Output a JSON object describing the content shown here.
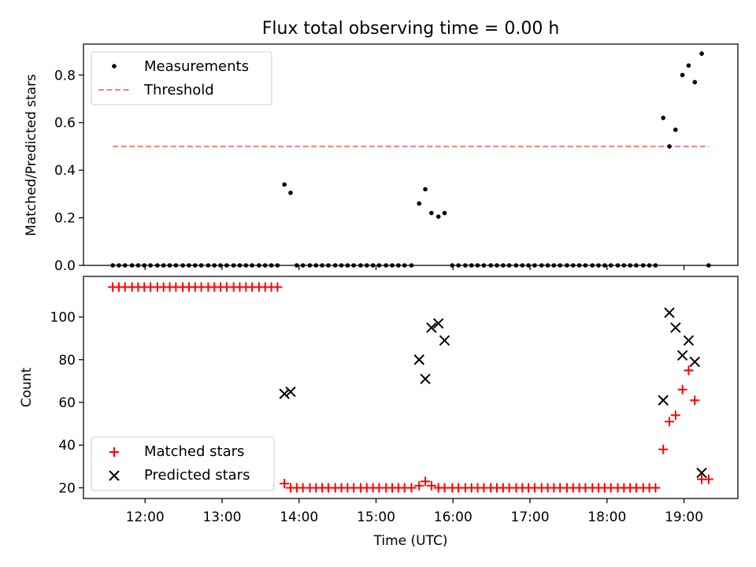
{
  "figure": {
    "title": "Flux total observing time = 0.00 h",
    "xlabel": "Time (UTC)",
    "x_ticks": [
      "12:00",
      "13:00",
      "14:00",
      "15:00",
      "16:00",
      "17:00",
      "18:00",
      "19:00"
    ]
  },
  "colors": {
    "measurement": "#000000",
    "threshold": "#ff7f7f",
    "matched": "#ff0000",
    "predicted": "#000000"
  },
  "chart_data": [
    {
      "type": "scatter",
      "name": "ratio",
      "ylabel": "Matched/Predicted stars",
      "xlim": [
        11.2,
        19.7
      ],
      "ylim": [
        0,
        0.93
      ],
      "y_ticks": [
        "0.0",
        "0.2",
        "0.4",
        "0.6",
        "0.8"
      ],
      "y_tick_values": [
        0,
        0.2,
        0.4,
        0.6,
        0.8
      ],
      "legend": {
        "location": "upper left",
        "entries": [
          "Measurements",
          "Threshold"
        ]
      },
      "threshold": {
        "name": "Threshold",
        "y": 0.5,
        "x_range": [
          11.58,
          19.32
        ]
      },
      "series": [
        {
          "name": "Measurements",
          "points": [
            [
              11.58,
              0
            ],
            [
              11.66,
              0
            ],
            [
              11.74,
              0
            ],
            [
              11.83,
              0
            ],
            [
              11.91,
              0
            ],
            [
              11.99,
              0
            ],
            [
              12.07,
              0
            ],
            [
              12.16,
              0
            ],
            [
              12.24,
              0
            ],
            [
              12.32,
              0
            ],
            [
              12.4,
              0
            ],
            [
              12.49,
              0
            ],
            [
              12.57,
              0
            ],
            [
              12.65,
              0
            ],
            [
              12.73,
              0
            ],
            [
              12.82,
              0
            ],
            [
              12.9,
              0
            ],
            [
              12.98,
              0
            ],
            [
              13.06,
              0
            ],
            [
              13.15,
              0
            ],
            [
              13.23,
              0
            ],
            [
              13.31,
              0
            ],
            [
              13.39,
              0
            ],
            [
              13.48,
              0
            ],
            [
              13.56,
              0
            ],
            [
              13.64,
              0
            ],
            [
              13.72,
              0
            ],
            [
              13.81,
              0.34
            ],
            [
              13.89,
              0.305
            ],
            [
              13.97,
              0
            ],
            [
              14.05,
              0
            ],
            [
              14.14,
              0
            ],
            [
              14.22,
              0
            ],
            [
              14.3,
              0
            ],
            [
              14.38,
              0
            ],
            [
              14.47,
              0
            ],
            [
              14.55,
              0
            ],
            [
              14.63,
              0
            ],
            [
              14.71,
              0
            ],
            [
              14.8,
              0
            ],
            [
              14.88,
              0
            ],
            [
              14.96,
              0
            ],
            [
              15.04,
              0
            ],
            [
              15.13,
              0
            ],
            [
              15.21,
              0
            ],
            [
              15.29,
              0
            ],
            [
              15.37,
              0
            ],
            [
              15.46,
              0
            ],
            [
              15.56,
              0.26
            ],
            [
              15.64,
              0.32
            ],
            [
              15.72,
              0.22
            ],
            [
              15.81,
              0.205
            ],
            [
              15.89,
              0.22
            ],
            [
              15.99,
              0
            ],
            [
              16.07,
              0
            ],
            [
              16.16,
              0
            ],
            [
              16.24,
              0
            ],
            [
              16.32,
              0
            ],
            [
              16.4,
              0
            ],
            [
              16.49,
              0
            ],
            [
              16.57,
              0
            ],
            [
              16.65,
              0
            ],
            [
              16.73,
              0
            ],
            [
              16.82,
              0
            ],
            [
              16.9,
              0
            ],
            [
              16.98,
              0
            ],
            [
              17.06,
              0
            ],
            [
              17.15,
              0
            ],
            [
              17.23,
              0
            ],
            [
              17.31,
              0
            ],
            [
              17.39,
              0
            ],
            [
              17.48,
              0
            ],
            [
              17.56,
              0
            ],
            [
              17.64,
              0
            ],
            [
              17.72,
              0
            ],
            [
              17.81,
              0
            ],
            [
              17.89,
              0
            ],
            [
              17.97,
              0
            ],
            [
              18.05,
              0
            ],
            [
              18.14,
              0
            ],
            [
              18.22,
              0
            ],
            [
              18.3,
              0
            ],
            [
              18.38,
              0
            ],
            [
              18.47,
              0
            ],
            [
              18.55,
              0
            ],
            [
              18.63,
              0
            ],
            [
              18.73,
              0.62
            ],
            [
              18.81,
              0.5
            ],
            [
              18.89,
              0.57
            ],
            [
              18.98,
              0.8
            ],
            [
              19.06,
              0.84
            ],
            [
              19.14,
              0.77
            ],
            [
              19.23,
              0.89
            ],
            [
              19.32,
              0
            ]
          ]
        }
      ]
    },
    {
      "type": "scatter",
      "name": "counts",
      "ylabel": "Count",
      "xlabel": "Time (UTC)",
      "xlim": [
        11.2,
        19.7
      ],
      "ylim": [
        15,
        119
      ],
      "y_ticks": [
        "20",
        "40",
        "60",
        "80",
        "100"
      ],
      "y_tick_values": [
        20,
        40,
        60,
        80,
        100
      ],
      "legend": {
        "location": "lower left",
        "entries": [
          "Matched stars",
          "Predicted stars"
        ]
      },
      "series": [
        {
          "name": "Matched stars",
          "marker": "+",
          "points": [
            [
              11.58,
              114
            ],
            [
              11.66,
              114
            ],
            [
              11.74,
              114
            ],
            [
              11.83,
              114
            ],
            [
              11.91,
              114
            ],
            [
              11.99,
              114
            ],
            [
              12.07,
              114
            ],
            [
              12.16,
              114
            ],
            [
              12.24,
              114
            ],
            [
              12.32,
              114
            ],
            [
              12.4,
              114
            ],
            [
              12.49,
              114
            ],
            [
              12.57,
              114
            ],
            [
              12.65,
              114
            ],
            [
              12.73,
              114
            ],
            [
              12.82,
              114
            ],
            [
              12.9,
              114
            ],
            [
              12.98,
              114
            ],
            [
              13.06,
              114
            ],
            [
              13.15,
              114
            ],
            [
              13.23,
              114
            ],
            [
              13.31,
              114
            ],
            [
              13.39,
              114
            ],
            [
              13.48,
              114
            ],
            [
              13.56,
              114
            ],
            [
              13.64,
              114
            ],
            [
              13.72,
              114
            ],
            [
              13.81,
              22
            ],
            [
              13.89,
              20
            ],
            [
              13.97,
              20
            ],
            [
              14.05,
              20
            ],
            [
              14.14,
              20
            ],
            [
              14.22,
              20
            ],
            [
              14.3,
              20
            ],
            [
              14.38,
              20
            ],
            [
              14.47,
              20
            ],
            [
              14.55,
              20
            ],
            [
              14.63,
              20
            ],
            [
              14.71,
              20
            ],
            [
              14.8,
              20
            ],
            [
              14.88,
              20
            ],
            [
              14.96,
              20
            ],
            [
              15.04,
              20
            ],
            [
              15.13,
              20
            ],
            [
              15.21,
              20
            ],
            [
              15.29,
              20
            ],
            [
              15.37,
              20
            ],
            [
              15.46,
              20
            ],
            [
              15.56,
              21
            ],
            [
              15.64,
              23
            ],
            [
              15.72,
              21
            ],
            [
              15.81,
              20
            ],
            [
              15.89,
              20
            ],
            [
              15.99,
              20
            ],
            [
              16.07,
              20
            ],
            [
              16.16,
              20
            ],
            [
              16.24,
              20
            ],
            [
              16.32,
              20
            ],
            [
              16.4,
              20
            ],
            [
              16.49,
              20
            ],
            [
              16.57,
              20
            ],
            [
              16.65,
              20
            ],
            [
              16.73,
              20
            ],
            [
              16.82,
              20
            ],
            [
              16.9,
              20
            ],
            [
              16.98,
              20
            ],
            [
              17.06,
              20
            ],
            [
              17.15,
              20
            ],
            [
              17.23,
              20
            ],
            [
              17.31,
              20
            ],
            [
              17.39,
              20
            ],
            [
              17.48,
              20
            ],
            [
              17.56,
              20
            ],
            [
              17.64,
              20
            ],
            [
              17.72,
              20
            ],
            [
              17.81,
              20
            ],
            [
              17.89,
              20
            ],
            [
              17.97,
              20
            ],
            [
              18.05,
              20
            ],
            [
              18.14,
              20
            ],
            [
              18.22,
              20
            ],
            [
              18.3,
              20
            ],
            [
              18.38,
              20
            ],
            [
              18.47,
              20
            ],
            [
              18.55,
              20
            ],
            [
              18.63,
              20
            ],
            [
              18.73,
              38
            ],
            [
              18.81,
              51
            ],
            [
              18.89,
              54
            ],
            [
              18.98,
              66
            ],
            [
              19.06,
              75
            ],
            [
              19.14,
              61
            ],
            [
              19.23,
              24
            ],
            [
              19.32,
              24
            ]
          ]
        },
        {
          "name": "Predicted stars",
          "marker": "x",
          "points": [
            [
              13.81,
              64
            ],
            [
              13.89,
              65
            ],
            [
              15.56,
              80
            ],
            [
              15.64,
              71
            ],
            [
              15.72,
              95
            ],
            [
              15.81,
              97
            ],
            [
              15.89,
              89
            ],
            [
              18.73,
              61
            ],
            [
              18.81,
              102
            ],
            [
              18.89,
              95
            ],
            [
              18.98,
              82
            ],
            [
              19.06,
              89
            ],
            [
              19.14,
              79
            ],
            [
              19.23,
              27
            ]
          ]
        }
      ]
    }
  ]
}
